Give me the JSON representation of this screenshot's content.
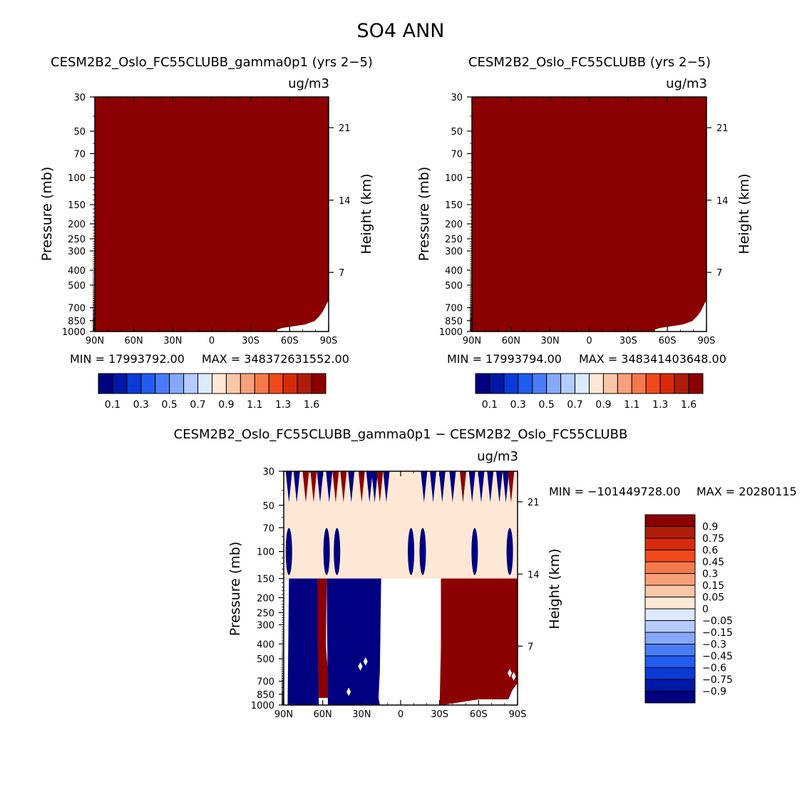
{
  "figure": {
    "title": "SO4 ANN"
  },
  "colors": {
    "levels": [
      "#000080",
      "#0018a8",
      "#0a3bd6",
      "#1f5cf0",
      "#4a7cf5",
      "#86a8fb",
      "#b3cbff",
      "#dce9ff",
      "#fde8d6",
      "#f9c6a8",
      "#f7a07a",
      "#f47a4c",
      "#f04a1c",
      "#d72a0a",
      "#b01c0a",
      "#8b0000"
    ],
    "panel_fill": "#8b0000",
    "diff_neg": "#000080",
    "diff_pos": "#8b0000",
    "diff_near_zero": "#fde8d6"
  },
  "chart_data": [
    {
      "type": "heatmap",
      "title": "CESM2B2_Oslo_FC55CLUBB_gamma0p1 (yrs 2−5)",
      "units": "ug/m3",
      "ylabel": "Pressure (mb)",
      "ylabel_right": "Height (km)",
      "y_ticks": [
        "30",
        "50",
        "70",
        "100",
        "150",
        "200",
        "250",
        "300",
        "400",
        "500",
        "700",
        "850",
        "1000"
      ],
      "y_right_ticks": [
        "21",
        "14",
        "7"
      ],
      "x_ticks": [
        "90N",
        "60N",
        "30N",
        "0",
        "30S",
        "60S",
        "90S"
      ],
      "stats": {
        "min_label": "MIN = 17993792.00",
        "max_label": "MAX = 348372631552.00",
        "min": 17993792.0,
        "max": 348372631552.0
      },
      "colorbar_labels": [
        "0.1",
        "0.3",
        "0.5",
        "0.7",
        "0.9",
        "1.1",
        "1.3",
        "1.6"
      ]
    },
    {
      "type": "heatmap",
      "title": "CESM2B2_Oslo_FC55CLUBB (yrs 2−5)",
      "units": "ug/m3",
      "ylabel": "Pressure (mb)",
      "ylabel_right": "Height (km)",
      "y_ticks": [
        "30",
        "50",
        "70",
        "100",
        "150",
        "200",
        "250",
        "300",
        "400",
        "500",
        "700",
        "850",
        "1000"
      ],
      "y_right_ticks": [
        "21",
        "14",
        "7"
      ],
      "x_ticks": [
        "90N",
        "60N",
        "30N",
        "0",
        "30S",
        "60S",
        "90S"
      ],
      "stats": {
        "min_label": "MIN = 17993794.00",
        "max_label": "MAX = 348341403648.00",
        "min": 17993794.0,
        "max": 348341403648.0
      },
      "colorbar_labels": [
        "0.1",
        "0.3",
        "0.5",
        "0.7",
        "0.9",
        "1.1",
        "1.3",
        "1.6"
      ]
    },
    {
      "type": "heatmap",
      "title": "CESM2B2_Oslo_FC55CLUBB_gamma0p1 − CESM2B2_Oslo_FC55CLUBB",
      "units": "ug/m3",
      "ylabel": "Pressure (mb)",
      "ylabel_right": "Height (km)",
      "y_ticks": [
        "30",
        "50",
        "70",
        "100",
        "150",
        "200",
        "250",
        "300",
        "400",
        "500",
        "700",
        "850",
        "1000"
      ],
      "y_right_ticks": [
        "21",
        "14",
        "7"
      ],
      "x_ticks": [
        "90N",
        "60N",
        "30N",
        "0",
        "30S",
        "60S",
        "90S"
      ],
      "stats": {
        "min_label": "MIN = −101449728.00",
        "max_label": "MAX = 20280115",
        "min": -101449728.0
      },
      "colorbar_labels": [
        "0.9",
        "0.75",
        "0.6",
        "0.45",
        "0.3",
        "0.15",
        "0.05",
        "0",
        "−0.05",
        "−0.15",
        "−0.3",
        "−0.45",
        "−0.6",
        "−0.75",
        "−0.9"
      ]
    }
  ]
}
